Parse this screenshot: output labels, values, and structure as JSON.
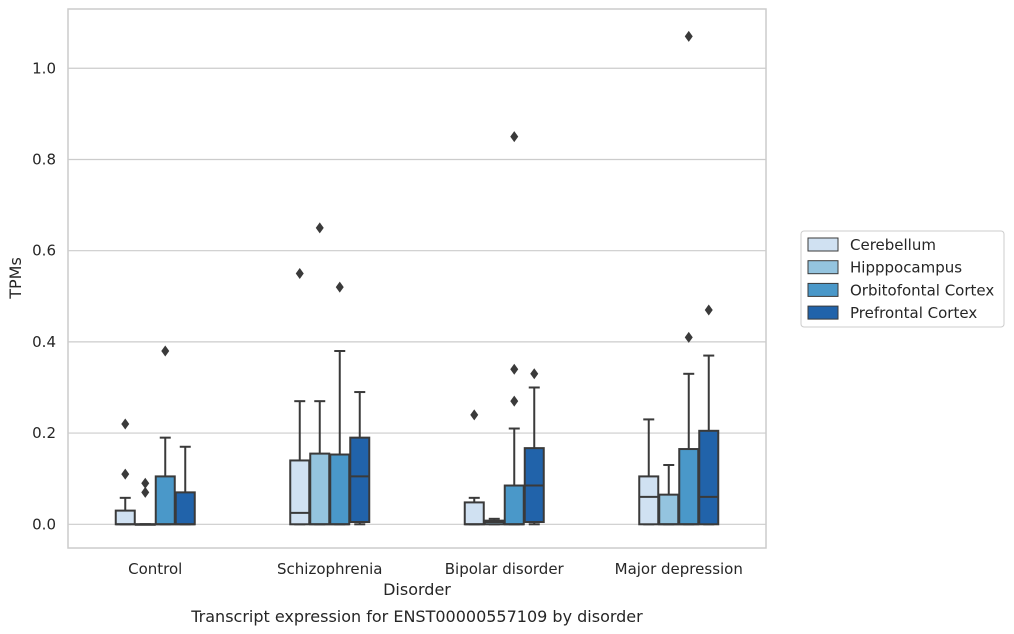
{
  "chart_data": {
    "type": "boxplot",
    "title": "",
    "caption": "Transcript expression for ENST00000557109 by disorder",
    "xlabel": "Disorder",
    "ylabel": "TPMs",
    "ylim": [
      -0.052,
      1.13
    ],
    "yticks": [
      "0.0",
      "0.2",
      "0.4",
      "0.6",
      "0.8",
      "1.0"
    ],
    "ytick_values": [
      0.0,
      0.2,
      0.4,
      0.6,
      0.8,
      1.0
    ],
    "grid": "horizontal",
    "legend_position": "right",
    "categories": [
      "Control",
      "Schizophrenia",
      "Bipolar disorder",
      "Major depression"
    ],
    "series": [
      {
        "name": "Cerebellum",
        "color": "#d0e1f2",
        "boxes": [
          {
            "q1": 0.0,
            "median": 0.0,
            "q3": 0.03,
            "whisker_low": 0.0,
            "whisker_high": 0.058,
            "outliers": [
              0.11,
              0.22
            ]
          },
          {
            "q1": 0.0,
            "median": 0.025,
            "q3": 0.14,
            "whisker_low": 0.0,
            "whisker_high": 0.27,
            "outliers": [
              0.55
            ]
          },
          {
            "q1": 0.0,
            "median": 0.0,
            "q3": 0.048,
            "whisker_low": 0.0,
            "whisker_high": 0.058,
            "outliers": [
              0.24
            ]
          },
          {
            "q1": 0.0,
            "median": 0.06,
            "q3": 0.105,
            "whisker_low": 0.0,
            "whisker_high": 0.23,
            "outliers": []
          }
        ]
      },
      {
        "name": "Hipppocampus",
        "color": "#94c4df",
        "boxes": [
          {
            "q1": 0.0,
            "median": 0.0,
            "q3": 0.0,
            "whisker_low": 0.0,
            "whisker_high": 0.0,
            "outliers": [
              0.07,
              0.09
            ]
          },
          {
            "q1": 0.0,
            "median": 0.0,
            "q3": 0.155,
            "whisker_low": 0.0,
            "whisker_high": 0.27,
            "outliers": [
              0.65
            ]
          },
          {
            "q1": 0.0,
            "median": 0.005,
            "q3": 0.008,
            "whisker_low": 0.0,
            "whisker_high": 0.012,
            "outliers": []
          },
          {
            "q1": 0.0,
            "median": 0.0,
            "q3": 0.065,
            "whisker_low": 0.0,
            "whisker_high": 0.13,
            "outliers": []
          }
        ]
      },
      {
        "name": "Orbitofontal Cortex",
        "color": "#4a98c9",
        "boxes": [
          {
            "q1": 0.0,
            "median": 0.0,
            "q3": 0.105,
            "whisker_low": 0.0,
            "whisker_high": 0.19,
            "outliers": [
              0.38
            ]
          },
          {
            "q1": 0.0,
            "median": 0.0,
            "q3": 0.153,
            "whisker_low": 0.0,
            "whisker_high": 0.38,
            "outliers": [
              0.52
            ]
          },
          {
            "q1": 0.0,
            "median": 0.0,
            "q3": 0.085,
            "whisker_low": 0.0,
            "whisker_high": 0.21,
            "outliers": [
              0.27,
              0.34,
              0.85
            ]
          },
          {
            "q1": 0.0,
            "median": 0.0,
            "q3": 0.165,
            "whisker_low": 0.0,
            "whisker_high": 0.33,
            "outliers": [
              0.41,
              1.07
            ]
          }
        ]
      },
      {
        "name": "Prefrontal Cortex",
        "color": "#2163aa",
        "boxes": [
          {
            "q1": 0.0,
            "median": 0.0,
            "q3": 0.07,
            "whisker_low": 0.0,
            "whisker_high": 0.17,
            "outliers": []
          },
          {
            "q1": 0.005,
            "median": 0.105,
            "q3": 0.19,
            "whisker_low": 0.0,
            "whisker_high": 0.29,
            "outliers": []
          },
          {
            "q1": 0.005,
            "median": 0.085,
            "q3": 0.167,
            "whisker_low": 0.0,
            "whisker_high": 0.3,
            "outliers": [
              0.33
            ]
          },
          {
            "q1": 0.0,
            "median": 0.06,
            "q3": 0.205,
            "whisker_low": 0.0,
            "whisker_high": 0.37,
            "outliers": [
              0.47
            ]
          }
        ]
      }
    ]
  }
}
